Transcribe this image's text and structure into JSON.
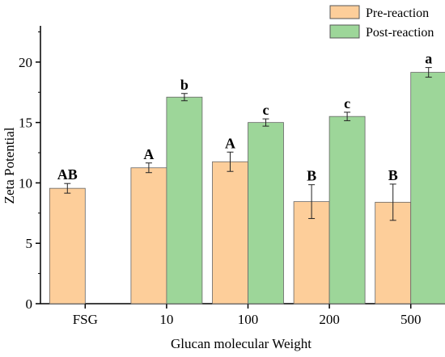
{
  "chart_data": {
    "type": "bar",
    "title": "",
    "xlabel": "Glucan molecular Weight",
    "ylabel": "Zeta Potential",
    "ylim": [
      0,
      23
    ],
    "yticks": [
      0,
      5,
      10,
      15,
      20
    ],
    "categories": [
      "FSG",
      "10",
      "100",
      "200",
      "500"
    ],
    "series": [
      {
        "name": "Pre-reaction",
        "color": "#FDCE9A",
        "values": [
          9.55,
          11.25,
          11.75,
          8.45,
          8.4
        ],
        "errors": [
          0.4,
          0.4,
          0.8,
          1.4,
          1.5
        ],
        "labels": [
          "AB",
          "A",
          "A",
          "B",
          "B"
        ]
      },
      {
        "name": "Post-reaction",
        "color": "#9DD699",
        "values": [
          null,
          17.1,
          15.0,
          15.5,
          19.15
        ],
        "errors": [
          null,
          0.3,
          0.3,
          0.35,
          0.4
        ],
        "labels": [
          "",
          "b",
          "c",
          "c",
          "a"
        ]
      }
    ],
    "legend": "top-right",
    "grid": false
  }
}
